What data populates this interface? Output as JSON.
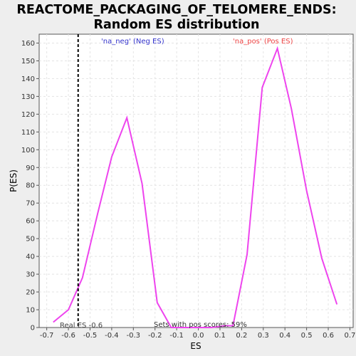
{
  "chart_data": {
    "type": "line",
    "title_line1": "REACTOME_PACKAGING_OF_TELOMERE_ENDS:",
    "title_line2": "Random ES distribution",
    "xlabel": "ES",
    "ylabel": "P(ES)",
    "xlim": [
      -0.735,
      0.715
    ],
    "ylim": [
      0,
      165
    ],
    "xticks": [
      -0.7,
      -0.6,
      -0.5,
      -0.4,
      -0.3,
      -0.2,
      -0.1,
      0.0,
      0.1,
      0.2,
      0.3,
      0.4,
      0.5,
      0.6,
      0.7
    ],
    "xtick_labels": [
      "-0.7",
      "-0.6",
      "-0.5",
      "-0.4",
      "-0.3",
      "-0.2",
      "-0.1",
      "0.0",
      "0.1",
      "0.2",
      "0.3",
      "0.4",
      "0.5",
      "0.6",
      "0.7"
    ],
    "yticks": [
      0,
      10,
      20,
      30,
      40,
      50,
      60,
      70,
      80,
      90,
      100,
      110,
      120,
      130,
      140,
      150,
      160
    ],
    "ytick_labels": [
      "0",
      "10",
      "20",
      "30",
      "40",
      "50",
      "60",
      "70",
      "80",
      "90",
      "100",
      "110",
      "120",
      "130",
      "140",
      "150",
      "160"
    ],
    "grid": true,
    "line_color": "#ee44ee",
    "series": [
      {
        "x": [
          -0.67,
          -0.6,
          -0.535,
          -0.465,
          -0.4,
          -0.33,
          -0.26,
          -0.19,
          -0.125,
          -0.06,
          0.0,
          0.06,
          0.125,
          0.16,
          0.225,
          0.295,
          0.365,
          0.43,
          0.5,
          0.57,
          0.64
        ],
        "y": [
          3,
          10,
          28,
          64,
          96,
          118,
          81,
          14,
          0,
          0,
          0,
          0,
          1,
          1,
          41,
          135,
          157,
          123,
          77,
          39,
          13
        ]
      }
    ],
    "real_es": {
      "value": -0.555,
      "label": "Real ES -0.6",
      "color": "#000000"
    },
    "annotations": {
      "neg_label": "'na_neg' (Neg ES)",
      "neg_color": "#3333cc",
      "pos_label": "'na_pos' (Pos ES)",
      "pos_color": "#ee4444",
      "pos_scores": "Sets with pos scores: 59%"
    }
  }
}
